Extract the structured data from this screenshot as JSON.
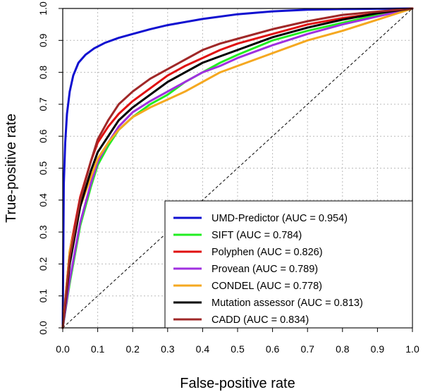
{
  "chart_data": {
    "type": "line",
    "title": "",
    "xlabel": "False-positive rate",
    "ylabel": "True-positive rate",
    "xlim": [
      0,
      1
    ],
    "ylim": [
      0,
      1
    ],
    "xticks": [
      "0.0",
      "0.1",
      "0.2",
      "0.3",
      "0.4",
      "0.5",
      "0.6",
      "0.7",
      "0.8",
      "0.9",
      "1.0"
    ],
    "yticks": [
      "0.0",
      "0.1",
      "0.2",
      "0.3",
      "0.4",
      "0.5",
      "0.6",
      "0.7",
      "0.8",
      "0.9",
      "1.0"
    ],
    "grid": true,
    "legend_position": "bottom-right",
    "diagonal_reference": true,
    "series": [
      {
        "name": "UMD-Predictor (AUC = 0.954)",
        "color": "#1010d0",
        "x": [
          0,
          0.003,
          0.007,
          0.012,
          0.02,
          0.03,
          0.045,
          0.065,
          0.09,
          0.12,
          0.16,
          0.2,
          0.25,
          0.3,
          0.4,
          0.5,
          0.6,
          0.7,
          0.8,
          0.9,
          1
        ],
        "y": [
          0,
          0.45,
          0.58,
          0.67,
          0.74,
          0.79,
          0.83,
          0.855,
          0.875,
          0.892,
          0.908,
          0.92,
          0.935,
          0.948,
          0.967,
          0.982,
          0.991,
          0.996,
          0.998,
          0.999,
          1
        ]
      },
      {
        "name": "SIFT (AUC = 0.784)",
        "color": "#22ee22",
        "x": [
          0,
          0.02,
          0.05,
          0.08,
          0.1,
          0.13,
          0.16,
          0.2,
          0.25,
          0.3,
          0.35,
          0.4,
          0.45,
          0.5,
          0.6,
          0.7,
          0.8,
          0.9,
          1
        ],
        "y": [
          0,
          0.14,
          0.32,
          0.44,
          0.51,
          0.57,
          0.62,
          0.66,
          0.7,
          0.73,
          0.77,
          0.8,
          0.83,
          0.855,
          0.9,
          0.93,
          0.955,
          0.98,
          1
        ]
      },
      {
        "name": "Polyphen (AUC = 0.826)",
        "color": "#e01010",
        "x": [
          0,
          0.02,
          0.05,
          0.08,
          0.1,
          0.13,
          0.16,
          0.2,
          0.25,
          0.3,
          0.35,
          0.4,
          0.45,
          0.5,
          0.6,
          0.7,
          0.8,
          0.9,
          1
        ],
        "y": [
          0,
          0.24,
          0.41,
          0.52,
          0.58,
          0.63,
          0.67,
          0.71,
          0.75,
          0.79,
          0.82,
          0.845,
          0.87,
          0.89,
          0.92,
          0.95,
          0.97,
          0.985,
          1
        ]
      },
      {
        "name": "Provean (AUC = 0.789)",
        "color": "#a030e0",
        "x": [
          0,
          0.02,
          0.05,
          0.08,
          0.1,
          0.13,
          0.16,
          0.2,
          0.25,
          0.3,
          0.35,
          0.4,
          0.45,
          0.5,
          0.6,
          0.7,
          0.8,
          0.9,
          1
        ],
        "y": [
          0,
          0.15,
          0.33,
          0.45,
          0.52,
          0.58,
          0.63,
          0.675,
          0.71,
          0.74,
          0.77,
          0.8,
          0.82,
          0.845,
          0.885,
          0.92,
          0.95,
          0.975,
          1
        ]
      },
      {
        "name": "CONDEL (AUC = 0.778)",
        "color": "#f5a820",
        "x": [
          0,
          0.02,
          0.05,
          0.08,
          0.1,
          0.13,
          0.16,
          0.2,
          0.25,
          0.3,
          0.35,
          0.4,
          0.45,
          0.5,
          0.6,
          0.7,
          0.8,
          0.9,
          1
        ],
        "y": [
          0,
          0.24,
          0.38,
          0.47,
          0.53,
          0.58,
          0.62,
          0.66,
          0.69,
          0.715,
          0.74,
          0.77,
          0.8,
          0.82,
          0.86,
          0.9,
          0.93,
          0.965,
          1
        ]
      },
      {
        "name": "Mutation assessor (AUC = 0.813)",
        "color": "#000000",
        "x": [
          0,
          0.02,
          0.05,
          0.08,
          0.1,
          0.13,
          0.16,
          0.2,
          0.25,
          0.3,
          0.35,
          0.4,
          0.45,
          0.5,
          0.6,
          0.7,
          0.8,
          0.9,
          1
        ],
        "y": [
          0,
          0.2,
          0.38,
          0.49,
          0.55,
          0.6,
          0.65,
          0.69,
          0.73,
          0.77,
          0.8,
          0.83,
          0.85,
          0.87,
          0.91,
          0.94,
          0.965,
          0.985,
          1
        ]
      },
      {
        "name": "CADD (AUC = 0.834)",
        "color": "#a02828",
        "x": [
          0,
          0.02,
          0.05,
          0.08,
          0.1,
          0.13,
          0.16,
          0.2,
          0.25,
          0.3,
          0.35,
          0.4,
          0.45,
          0.5,
          0.6,
          0.7,
          0.8,
          0.9,
          1
        ],
        "y": [
          0,
          0.22,
          0.4,
          0.52,
          0.59,
          0.65,
          0.7,
          0.74,
          0.78,
          0.81,
          0.84,
          0.87,
          0.89,
          0.905,
          0.935,
          0.96,
          0.98,
          0.99,
          1
        ]
      }
    ]
  }
}
